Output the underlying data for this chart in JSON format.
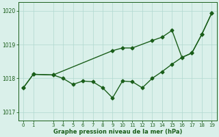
{
  "x_lower": [
    0,
    1,
    3,
    4,
    5,
    6,
    7,
    8,
    9,
    10,
    11,
    12,
    13,
    14,
    15,
    16,
    17,
    18,
    19
  ],
  "y_lower": [
    1017.72,
    1018.12,
    1018.1,
    1018.0,
    1017.82,
    1017.92,
    1017.9,
    1017.72,
    1017.42,
    1017.92,
    1017.9,
    1017.72,
    1018.0,
    1018.2,
    1018.42,
    1018.62,
    1018.75,
    1019.3,
    1019.93
  ],
  "x_upper": [
    0,
    1,
    3,
    9,
    10,
    11,
    13,
    14,
    15,
    16,
    17,
    18,
    19
  ],
  "y_upper": [
    1017.72,
    1018.12,
    1018.1,
    1018.82,
    1018.9,
    1018.9,
    1019.12,
    1019.22,
    1019.42,
    1018.62,
    1018.75,
    1019.3,
    1019.93
  ],
  "xlabel": "Graphe pression niveau de la mer (hPa)",
  "ylim": [
    1016.75,
    1020.25
  ],
  "xlim": [
    -0.5,
    19.5
  ],
  "yticks": [
    1017,
    1018,
    1019,
    1020
  ],
  "xticks": [
    0,
    1,
    3,
    4,
    5,
    6,
    7,
    8,
    9,
    10,
    11,
    12,
    13,
    14,
    15,
    16,
    17,
    18,
    19
  ],
  "line_color": "#1a5e1a",
  "bg_color": "#daf0ea",
  "grid_color": "#b0d8d0",
  "marker": "D",
  "marker_size": 2.5,
  "linewidth": 1.0
}
